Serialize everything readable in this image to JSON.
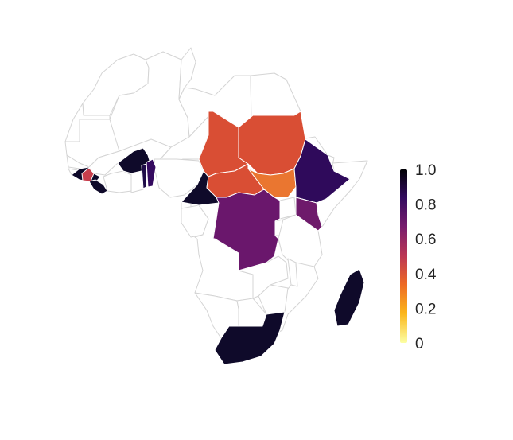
{
  "map": {
    "type": "choropleth",
    "region": "Africa",
    "colorscale": "inferno (reversed)",
    "colors": {
      "no_data_fill": "#ffffff",
      "border": "#d4d4d4",
      "highlight_border": "#ffffff"
    },
    "highlighted": [
      {
        "name": "Guinea",
        "value": 0.96
      },
      {
        "name": "Sierra Leone",
        "value": 0.45
      },
      {
        "name": "Liberia",
        "value": 0.98
      },
      {
        "name": "Burkina Faso",
        "value": 0.97
      },
      {
        "name": "Togo",
        "value": 0.9
      },
      {
        "name": "Benin",
        "value": 0.85
      },
      {
        "name": "Cameroon",
        "value": 0.97
      },
      {
        "name": "Chad",
        "value": 0.45
      },
      {
        "name": "Sudan",
        "value": 0.45
      },
      {
        "name": "South Sudan",
        "value": 0.38
      },
      {
        "name": "Central African Republic",
        "value": 0.46
      },
      {
        "name": "Ethiopia",
        "value": 0.85
      },
      {
        "name": "Kenya",
        "value": 0.65
      },
      {
        "name": "DR Congo",
        "value": 0.7
      },
      {
        "name": "Madagascar",
        "value": 0.97
      },
      {
        "name": "South Africa",
        "value": 0.97
      }
    ]
  },
  "colorbar": {
    "min": 0,
    "max": 1,
    "ticks": [
      "1.0",
      "0.8",
      "0.6",
      "0.4",
      "0.2",
      "0"
    ],
    "gradient_stops": [
      "#000004",
      "#320a5e",
      "#781c6d",
      "#bc3754",
      "#ed6925",
      "#fbb61a",
      "#fcffa4"
    ]
  }
}
